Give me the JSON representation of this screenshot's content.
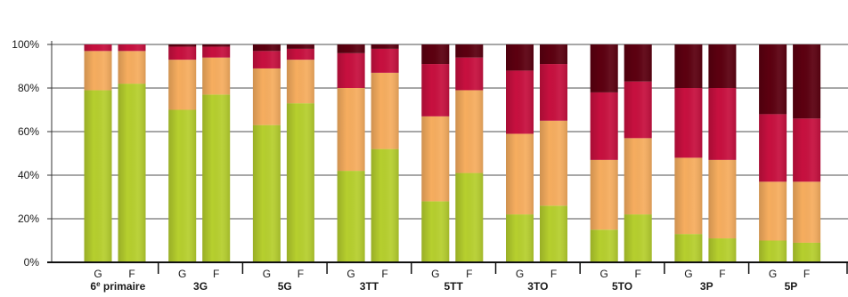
{
  "chart_data": {
    "type": "bar",
    "stacked": true,
    "percent_stacked": true,
    "title": "",
    "xlabel": "",
    "ylabel": "",
    "ylim": [
      0,
      100
    ],
    "y_ticks": [
      "0%",
      "20%",
      "40%",
      "60%",
      "80%",
      "100%"
    ],
    "grid": true,
    "legend": "none",
    "groups": [
      {
        "label": "6",
        "label_sup": "e",
        "label_rest": " primaire"
      },
      {
        "label": "3G"
      },
      {
        "label": "5G"
      },
      {
        "label": "3TT"
      },
      {
        "label": "5TT"
      },
      {
        "label": "3TO"
      },
      {
        "label": "5TO"
      },
      {
        "label": "3P"
      },
      {
        "label": "5P"
      }
    ],
    "sub_categories": [
      "G",
      "F"
    ],
    "series": [
      {
        "color": "#b6cf2e",
        "values": [
          [
            79,
            82
          ],
          [
            70,
            77
          ],
          [
            63,
            73
          ],
          [
            42,
            52
          ],
          [
            28,
            41
          ],
          [
            22,
            26
          ],
          [
            15,
            22
          ],
          [
            13,
            11
          ],
          [
            10,
            9
          ]
        ]
      },
      {
        "color": "#f6ad5f",
        "values": [
          [
            18,
            15
          ],
          [
            23,
            17
          ],
          [
            26,
            20
          ],
          [
            38,
            35
          ],
          [
            39,
            38
          ],
          [
            37,
            39
          ],
          [
            32,
            35
          ],
          [
            35,
            36
          ],
          [
            27,
            28
          ]
        ]
      },
      {
        "color": "#c7103f",
        "values": [
          [
            3,
            3
          ],
          [
            6,
            5
          ],
          [
            8,
            5
          ],
          [
            16,
            11
          ],
          [
            24,
            15
          ],
          [
            29,
            26
          ],
          [
            31,
            26
          ],
          [
            32,
            33
          ],
          [
            31,
            29
          ]
        ]
      },
      {
        "color": "#5c0010",
        "values": [
          [
            0,
            0
          ],
          [
            1,
            1
          ],
          [
            3,
            2
          ],
          [
            4,
            2
          ],
          [
            9,
            6
          ],
          [
            12,
            9
          ],
          [
            22,
            17
          ],
          [
            20,
            20
          ],
          [
            32,
            34
          ]
        ]
      }
    ]
  }
}
